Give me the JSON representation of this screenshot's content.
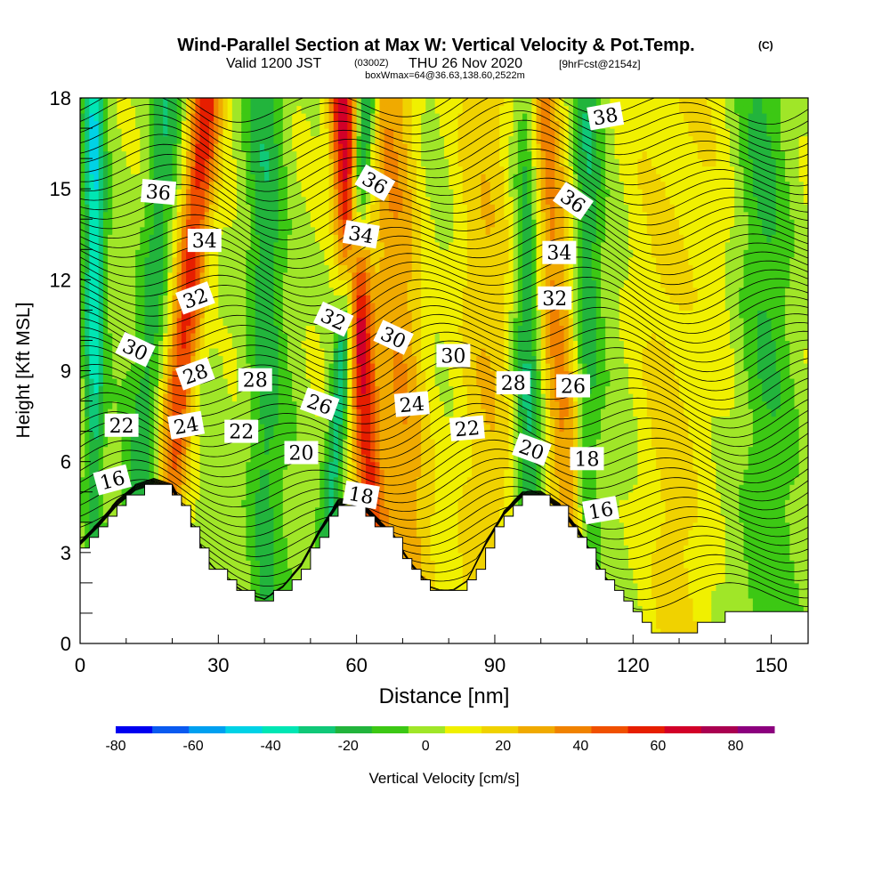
{
  "chart_data": {
    "type": "heatmap",
    "title": "Wind-Parallel Section at Max W: Vertical Velocity & Pot.Temp.",
    "title_mark": "(C)",
    "subtitle_main": "Valid 1200 JST",
    "subtitle_small": "(0300Z)",
    "subtitle_date": "THU 26 Nov 2020",
    "subtitle_fcst": "[9hrFcst@2154z]",
    "subtitle3": "boxWmax=64@36.63,138.60,2522m",
    "xlabel": "Distance [nm]",
    "ylabel": "Height [Kft MSL]",
    "xlim": [
      0,
      158
    ],
    "ylim": [
      0,
      18
    ],
    "x_ticks": [
      "0",
      "30",
      "60",
      "90",
      "120",
      "150"
    ],
    "y_ticks": [
      "0",
      "3",
      "6",
      "9",
      "12",
      "15",
      "18"
    ],
    "colorbar": {
      "label": "Vertical Velocity [cm/s]",
      "tick_labels": [
        "-80",
        "-60",
        "-40",
        "-20",
        "0",
        "20",
        "40",
        "60",
        "80"
      ],
      "range": [
        -80,
        90
      ],
      "colors": [
        "#0000f0",
        "#0a5af0",
        "#00a0f0",
        "#00d2e6",
        "#00e6b4",
        "#10c878",
        "#22b43c",
        "#3cc814",
        "#a0e628",
        "#f0f000",
        "#f0d200",
        "#f0aa00",
        "#f08200",
        "#f05000",
        "#e61e00",
        "#d20028",
        "#aa0050",
        "#8c007e"
      ]
    },
    "terrain": [
      {
        "x": 0,
        "z": 3.2
      },
      {
        "x": 4,
        "z": 3.8
      },
      {
        "x": 8,
        "z": 4.5
      },
      {
        "x": 12,
        "z": 5.0
      },
      {
        "x": 16,
        "z": 5.2
      },
      {
        "x": 20,
        "z": 5.0
      },
      {
        "x": 24,
        "z": 3.8
      },
      {
        "x": 28,
        "z": 2.6
      },
      {
        "x": 32,
        "z": 2.0
      },
      {
        "x": 36,
        "z": 1.6
      },
      {
        "x": 40,
        "z": 1.4
      },
      {
        "x": 44,
        "z": 1.8
      },
      {
        "x": 48,
        "z": 2.5
      },
      {
        "x": 52,
        "z": 3.6
      },
      {
        "x": 56,
        "z": 4.5
      },
      {
        "x": 60,
        "z": 4.6
      },
      {
        "x": 64,
        "z": 4.0
      },
      {
        "x": 68,
        "z": 3.4
      },
      {
        "x": 72,
        "z": 2.5
      },
      {
        "x": 76,
        "z": 1.8
      },
      {
        "x": 80,
        "z": 1.6
      },
      {
        "x": 84,
        "z": 2.0
      },
      {
        "x": 88,
        "z": 3.2
      },
      {
        "x": 92,
        "z": 4.2
      },
      {
        "x": 96,
        "z": 4.8
      },
      {
        "x": 100,
        "z": 4.8
      },
      {
        "x": 104,
        "z": 4.4
      },
      {
        "x": 108,
        "z": 3.6
      },
      {
        "x": 112,
        "z": 2.6
      },
      {
        "x": 116,
        "z": 1.6
      },
      {
        "x": 120,
        "z": 0.9
      },
      {
        "x": 124,
        "z": 0.5
      },
      {
        "x": 128,
        "z": 0.3
      },
      {
        "x": 132,
        "z": 0.4
      },
      {
        "x": 136,
        "z": 0.7
      },
      {
        "x": 140,
        "z": 0.9
      },
      {
        "x": 146,
        "z": 1.0
      },
      {
        "x": 152,
        "z": 1.0
      },
      {
        "x": 158,
        "z": 1.0
      }
    ],
    "updraft_bands": [
      {
        "x0": 22,
        "slope": 0.15,
        "amp": 55,
        "width": 3.5
      },
      {
        "x0": 61,
        "slope": -0.12,
        "amp": 70,
        "width": 3.0
      },
      {
        "x0": 104,
        "slope": -0.1,
        "amp": 32,
        "width": 4.0
      },
      {
        "x0": 69,
        "slope": -0.05,
        "amp": 28,
        "width": 6.0
      },
      {
        "x0": 88,
        "slope": 0.05,
        "amp": 18,
        "width": 8.0
      },
      {
        "x0": 130,
        "slope": 0.0,
        "amp": 14,
        "width": 10.0
      }
    ],
    "downdraft_bands": [
      {
        "x0": 3,
        "slope": 0.0,
        "amp": -42,
        "width": 2.2
      },
      {
        "x0": 15,
        "slope": 0.1,
        "amp": -22,
        "width": 3.5
      },
      {
        "x0": 40,
        "slope": 0.0,
        "amp": -20,
        "width": 4.0
      },
      {
        "x0": 57,
        "slope": 0.15,
        "amp": -45,
        "width": 2.2
      },
      {
        "x0": 97,
        "slope": 0.0,
        "amp": -28,
        "width": 3.0
      },
      {
        "x0": 110,
        "slope": 0.0,
        "amp": -22,
        "width": 3.0
      },
      {
        "x0": 148,
        "slope": 0.0,
        "amp": -15,
        "width": 6.0
      }
    ],
    "contour_labels": [
      {
        "text": "16",
        "x": 7,
        "z": 5.4,
        "rot": -15
      },
      {
        "text": "22",
        "x": 9,
        "z": 7.2,
        "rot": 0
      },
      {
        "text": "30",
        "x": 12,
        "z": 9.7,
        "rot": 25
      },
      {
        "text": "36",
        "x": 17,
        "z": 14.9,
        "rot": 5
      },
      {
        "text": "34",
        "x": 27,
        "z": 13.3,
        "rot": 0
      },
      {
        "text": "32",
        "x": 25,
        "z": 11.4,
        "rot": -20
      },
      {
        "text": "28",
        "x": 25,
        "z": 8.9,
        "rot": -20
      },
      {
        "text": "24",
        "x": 23,
        "z": 7.2,
        "rot": -10
      },
      {
        "text": "22",
        "x": 35,
        "z": 7.0,
        "rot": 0
      },
      {
        "text": "28",
        "x": 38,
        "z": 8.7,
        "rot": 0
      },
      {
        "text": "26",
        "x": 52,
        "z": 7.9,
        "rot": 20
      },
      {
        "text": "20",
        "x": 48,
        "z": 6.3,
        "rot": 0
      },
      {
        "text": "32",
        "x": 55,
        "z": 10.7,
        "rot": 25
      },
      {
        "text": "34",
        "x": 61,
        "z": 13.5,
        "rot": 10
      },
      {
        "text": "36",
        "x": 64,
        "z": 15.2,
        "rot": 30
      },
      {
        "text": "30",
        "x": 68,
        "z": 10.1,
        "rot": 25
      },
      {
        "text": "18",
        "x": 61,
        "z": 4.9,
        "rot": 10
      },
      {
        "text": "24",
        "x": 72,
        "z": 7.9,
        "rot": -5
      },
      {
        "text": "30",
        "x": 81,
        "z": 9.5,
        "rot": 0
      },
      {
        "text": "22",
        "x": 84,
        "z": 7.1,
        "rot": -5
      },
      {
        "text": "28",
        "x": 94,
        "z": 8.6,
        "rot": 0
      },
      {
        "text": "20",
        "x": 98,
        "z": 6.4,
        "rot": 20
      },
      {
        "text": "26",
        "x": 107,
        "z": 8.5,
        "rot": 0
      },
      {
        "text": "18",
        "x": 110,
        "z": 6.1,
        "rot": 0
      },
      {
        "text": "16",
        "x": 113,
        "z": 4.4,
        "rot": -10
      },
      {
        "text": "32",
        "x": 103,
        "z": 11.4,
        "rot": 0
      },
      {
        "text": "34",
        "x": 104,
        "z": 12.9,
        "rot": 0
      },
      {
        "text": "36",
        "x": 107,
        "z": 14.6,
        "rot": 35
      },
      {
        "text": "38",
        "x": 114,
        "z": 17.4,
        "rot": -10
      }
    ],
    "theta_levels_min": 14,
    "theta_levels_max": 40,
    "theta_levels_step": 0.5,
    "grid": false,
    "legend": "bottom"
  }
}
